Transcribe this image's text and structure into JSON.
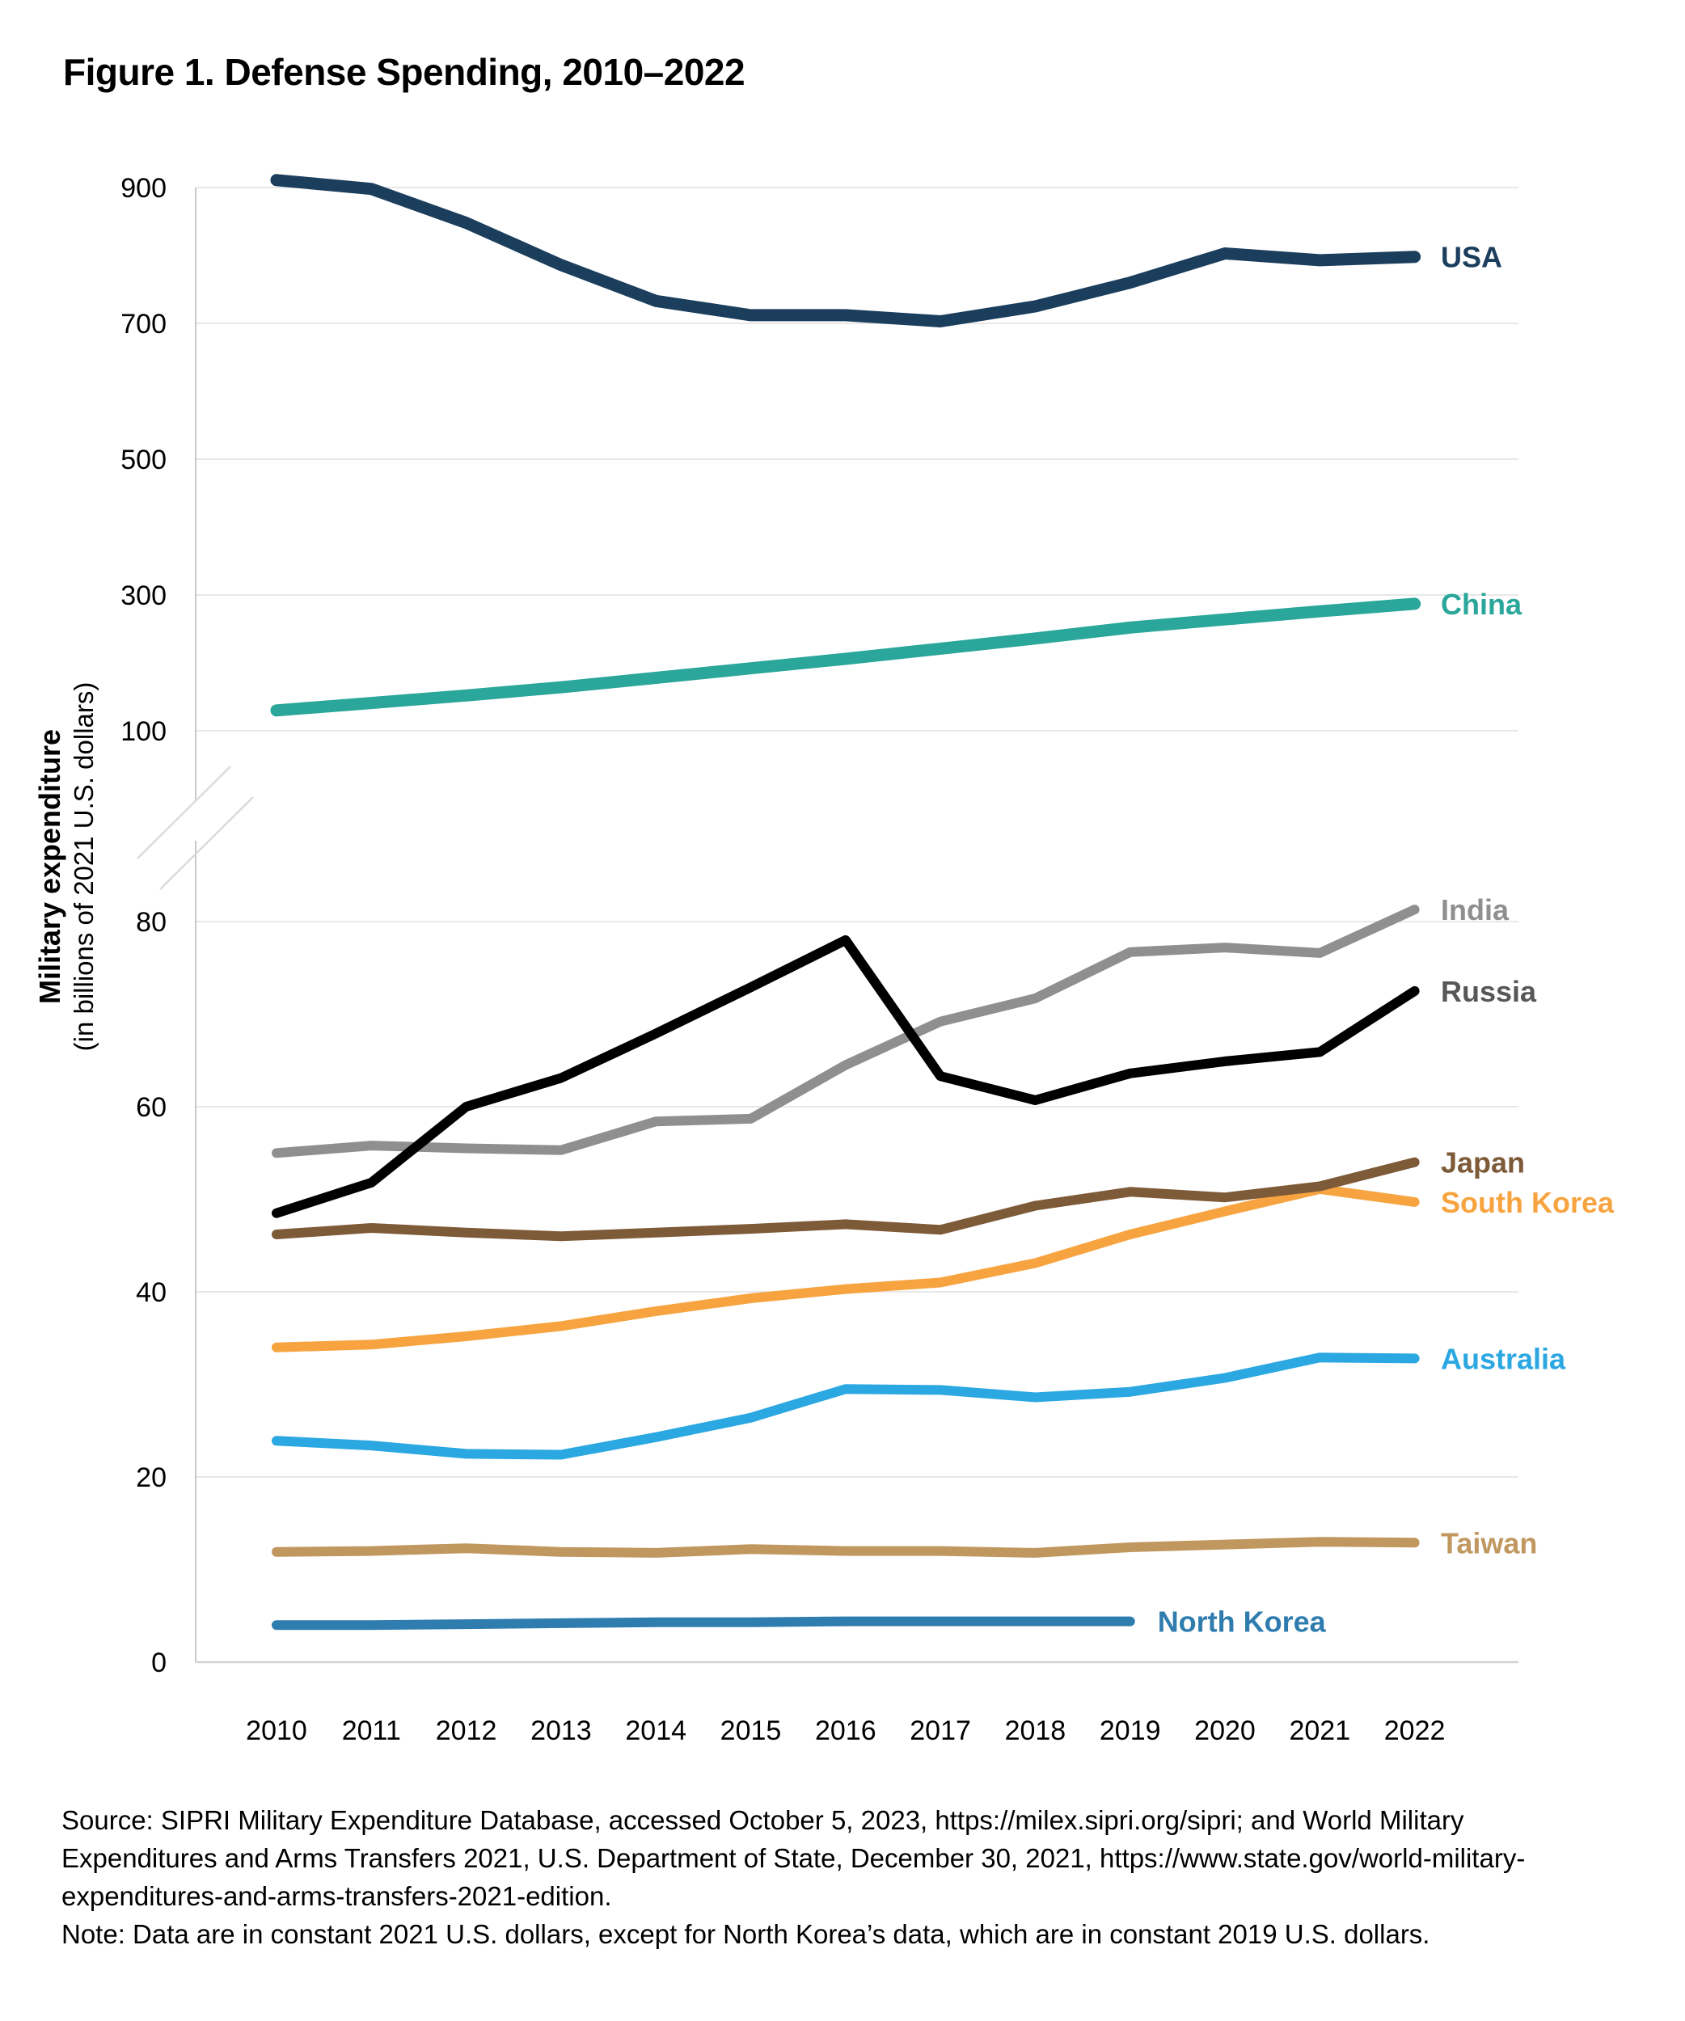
{
  "figure": {
    "title": "Figure 1. Defense Spending, 2010–2022",
    "y_axis_title_bold": "Military expenditure",
    "y_axis_title_sub": "(in billions of 2021 U.S. dollars)",
    "source_lines": [
      "Source: SIPRI Military Expenditure Database, accessed October 5, 2023, https://milex.sipri.org/sipri; and World Military",
      "Expenditures and Arms Transfers 2021, U.S. Department of State, December 30, 2021, https://www.state.gov/world-military-",
      "expenditures-and-arms-transfers-2021-edition.",
      "Note: Data are in constant 2021 U.S. dollars, except for North Korea’s data, which are in constant 2019 U.S. dollars."
    ]
  },
  "chart_data": {
    "type": "line",
    "title": "Figure 1. Defense Spending, 2010–2022",
    "xlabel": "",
    "ylabel": "Military expenditure (in billions of 2021 U.S. dollars)",
    "grid": "horizontal",
    "legend_position": "line-end labels (right of chart)",
    "broken_y_axis": true,
    "x": [
      2010,
      2011,
      2012,
      2013,
      2014,
      2015,
      2016,
      2017,
      2018,
      2019,
      2020,
      2021,
      2022
    ],
    "panels": {
      "top": {
        "ylim": [
          100,
          950
        ],
        "ticks": [
          900,
          700,
          500,
          300,
          100
        ]
      },
      "bottom": {
        "ylim": [
          0,
          86
        ],
        "ticks": [
          80,
          60,
          40,
          20,
          0
        ]
      }
    },
    "series": [
      {
        "name": "USA",
        "panel": "top",
        "color": "#1C3E5D",
        "label_color": "#1C3E5D",
        "values": [
          911,
          898,
          848,
          786,
          733,
          712,
          712,
          703,
          725,
          760,
          803,
          793,
          798
        ]
      },
      {
        "name": "China",
        "panel": "top",
        "color": "#2AA69A",
        "label_color": "#2AA69A",
        "values": [
          130,
          141,
          152,
          164,
          178,
          192,
          206,
          221,
          236,
          252,
          264,
          276,
          287
        ]
      },
      {
        "name": "India",
        "panel": "bottom",
        "color": "#8F8F8F",
        "label_color": "#8F8F8F",
        "values": [
          55.0,
          55.8,
          55.5,
          55.3,
          58.4,
          58.7,
          64.5,
          69.2,
          71.7,
          76.7,
          77.2,
          76.6,
          81.3
        ]
      },
      {
        "name": "Russia",
        "panel": "bottom",
        "color": "#000000",
        "label_color": "#575757",
        "values": [
          48.5,
          51.8,
          60.0,
          63.1,
          67.9,
          72.9,
          78.0,
          63.3,
          60.7,
          63.6,
          64.9,
          65.9,
          72.5
        ]
      },
      {
        "name": "South Korea",
        "panel": "bottom",
        "color": "#F7A440",
        "label_color": "#F7A440",
        "values": [
          34.0,
          34.3,
          35.2,
          36.3,
          37.9,
          39.3,
          40.3,
          41.0,
          43.1,
          46.2,
          48.7,
          51.1,
          49.7
        ]
      },
      {
        "name": "Japan",
        "panel": "bottom",
        "color": "#7D5A38",
        "label_color": "#7D5A38",
        "values": [
          46.2,
          46.9,
          46.4,
          46.0,
          46.4,
          46.8,
          47.3,
          46.7,
          49.3,
          50.8,
          50.2,
          51.4,
          54.0
        ]
      },
      {
        "name": "Australia",
        "panel": "bottom",
        "color": "#2BA7E1",
        "label_color": "#2BA7E1",
        "values": [
          23.9,
          23.4,
          22.5,
          22.4,
          24.3,
          26.4,
          29.5,
          29.4,
          28.6,
          29.2,
          30.7,
          32.9,
          32.8
        ]
      },
      {
        "name": "Taiwan",
        "panel": "bottom",
        "color": "#C0985F",
        "label_color": "#C0985F",
        "values": [
          11.9,
          12.0,
          12.3,
          11.9,
          11.8,
          12.2,
          12.0,
          12.0,
          11.8,
          12.4,
          12.7,
          13.0,
          12.9
        ]
      },
      {
        "name": "North Korea",
        "panel": "bottom",
        "color": "#2F7CAE",
        "label_color": "#2F7CAE",
        "label_inline": true,
        "values": [
          4.0,
          4.0,
          4.1,
          4.2,
          4.3,
          4.3,
          4.4,
          4.4,
          4.4,
          4.4,
          null,
          null,
          null
        ]
      }
    ]
  }
}
